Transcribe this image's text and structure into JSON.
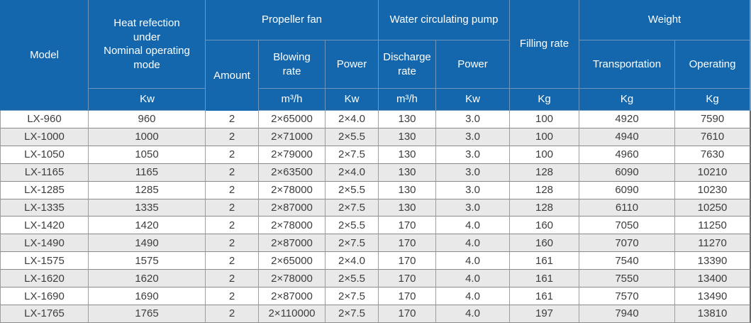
{
  "colors": {
    "header_bg": "#1467ad",
    "header_text": "#ffffff",
    "header_grid": "#6e96bd",
    "row_bg": "#ffffff",
    "row_alt_bg": "#e9e9e9",
    "cell_text": "#3d3d3d",
    "grid_line": "#999999"
  },
  "table": {
    "header": {
      "model": "Model",
      "heat_reflection": "Heat refection\nunder\nNominal operating\nmode",
      "propeller_fan_group": "Propeller fan",
      "amount": "Amount",
      "blowing_rate": "Blowing\nrate",
      "fan_power": "Power",
      "water_pump_group": "Water circulating pump",
      "discharge_rate": "Discharge\nrate",
      "pump_power": "Power",
      "filling_rate": "Filling rate",
      "weight_group": "Weight",
      "transportation": "Transportation",
      "operating": "Operating"
    },
    "units": {
      "heat_reflection": "Kw",
      "blowing_rate": "m³/h",
      "fan_power": "Kw",
      "discharge_rate": "m³/h",
      "pump_power": "Kw",
      "filling_rate": "Kg",
      "transportation": "Kg",
      "operating": "Kg"
    },
    "columns": [
      "model",
      "heat-reflection",
      "fan-amount",
      "blowing-rate",
      "fan-power",
      "discharge-rate",
      "pump-power",
      "filling-rate",
      "transportation",
      "operating"
    ],
    "rows": [
      [
        "LX-960",
        "960",
        "2",
        "2×65000",
        "2×4.0",
        "130",
        "3.0",
        "100",
        "4920",
        "7590"
      ],
      [
        "LX-1000",
        "1000",
        "2",
        "2×71000",
        "2×5.5",
        "130",
        "3.0",
        "100",
        "4940",
        "7610"
      ],
      [
        "LX-1050",
        "1050",
        "2",
        "2×79000",
        "2×7.5",
        "130",
        "3.0",
        "100",
        "4960",
        "7630"
      ],
      [
        "LX-1165",
        "1165",
        "2",
        "2×63500",
        "2×4.0",
        "130",
        "3.0",
        "128",
        "6090",
        "10210"
      ],
      [
        "LX-1285",
        "1285",
        "2",
        "2×78000",
        "2×5.5",
        "130",
        "3.0",
        "128",
        "6090",
        "10230"
      ],
      [
        "LX-1335",
        "1335",
        "2",
        "2×87000",
        "2×7.5",
        "130",
        "3.0",
        "128",
        "6110",
        "10250"
      ],
      [
        "LX-1420",
        "1420",
        "2",
        "2×78000",
        "2×5.5",
        "170",
        "4.0",
        "160",
        "7050",
        "11250"
      ],
      [
        "LX-1490",
        "1490",
        "2",
        "2×87000",
        "2×7.5",
        "170",
        "4.0",
        "160",
        "7070",
        "11270"
      ],
      [
        "LX-1575",
        "1575",
        "2",
        "2×65000",
        "2×4.0",
        "170",
        "4.0",
        "161",
        "7540",
        "13390"
      ],
      [
        "LX-1620",
        "1620",
        "2",
        "2×78000",
        "2×5.5",
        "170",
        "4.0",
        "161",
        "7550",
        "13400"
      ],
      [
        "LX-1690",
        "1690",
        "2",
        "2×87000",
        "2×7.5",
        "170",
        "4.0",
        "161",
        "7570",
        "13490"
      ],
      [
        "LX-1765",
        "1765",
        "2",
        "2×110000",
        "2×7.5",
        "170",
        "4.0",
        "197",
        "7940",
        "13810"
      ]
    ]
  }
}
